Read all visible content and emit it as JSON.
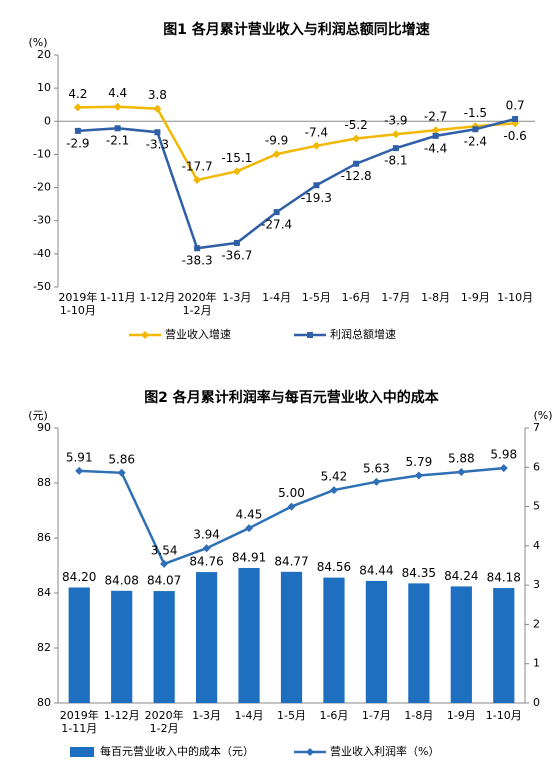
{
  "chart_data": [
    {
      "type": "line",
      "title": "图1 各月累计营业收入与利润总额同比增速",
      "y_unit": "(%)",
      "categories": [
        [
          "2019年",
          "1-10月"
        ],
        [
          "1-11月"
        ],
        [
          "1-12月"
        ],
        [
          "2020年",
          "1-2月"
        ],
        [
          "1-3月"
        ],
        [
          "1-4月"
        ],
        [
          "1-5月"
        ],
        [
          "1-6月"
        ],
        [
          "1-7月"
        ],
        [
          "1-8月"
        ],
        [
          "1-9月"
        ],
        [
          "1-10月"
        ]
      ],
      "series": [
        {
          "name": "营业收入增速",
          "type": "line",
          "marker": "diamond",
          "color": "#f2b800",
          "values": [
            4.2,
            4.4,
            3.8,
            -17.7,
            -15.1,
            -9.9,
            -7.4,
            -5.2,
            -3.9,
            -2.7,
            -1.5,
            -0.6
          ]
        },
        {
          "name": "利润总额增速",
          "type": "line",
          "marker": "square",
          "color": "#2f5fa7",
          "values": [
            -2.9,
            -2.1,
            -3.3,
            -38.3,
            -36.7,
            -27.4,
            -19.3,
            -12.8,
            -8.1,
            -4.4,
            -2.4,
            0.7
          ]
        }
      ],
      "ylim": [
        -50,
        20
      ],
      "yticks": [
        -50,
        -40,
        -30,
        -20,
        -10,
        0,
        10,
        20
      ]
    },
    {
      "type": "bar",
      "title": "图2 各月累计利润率与每百元营业收入中的成本",
      "y_unit": "(元)",
      "y2_unit": "(%)",
      "categories": [
        [
          "2019年",
          "1-11月"
        ],
        [
          "1-12月"
        ],
        [
          "2020年",
          "1-2月"
        ],
        [
          "1-3月"
        ],
        [
          "1-4月"
        ],
        [
          "1-5月"
        ],
        [
          "1-6月"
        ],
        [
          "1-7月"
        ],
        [
          "1-8月"
        ],
        [
          "1-9月"
        ],
        [
          "1-10月"
        ]
      ],
      "series": [
        {
          "name": "每百元营业收入中的成本（元）",
          "type": "bar",
          "color": "#1e6fbf",
          "values": [
            84.2,
            84.08,
            84.07,
            84.76,
            84.91,
            84.77,
            84.56,
            84.44,
            84.35,
            84.24,
            84.18
          ],
          "value_labels": [
            "84.20",
            "84.08",
            "84.07",
            "84.76",
            "84.91",
            "84.77",
            "84.56",
            "84.44",
            "84.35",
            "84.24",
            "84.18"
          ]
        },
        {
          "name": "营业收入利润率（%）",
          "type": "line",
          "marker": "diamond",
          "axis": "y2",
          "color": "#2e6fb5",
          "values": [
            5.91,
            5.86,
            3.54,
            3.94,
            4.45,
            5.0,
            5.42,
            5.63,
            5.79,
            5.88,
            5.98
          ],
          "value_labels": [
            "5.91",
            "5.86",
            "3.54",
            "3.94",
            "4.45",
            "5.00",
            "5.42",
            "5.63",
            "5.79",
            "5.88",
            "5.98"
          ]
        }
      ],
      "ylim": [
        80,
        90
      ],
      "yticks": [
        80,
        82,
        84,
        86,
        88,
        90
      ],
      "y2lim": [
        0,
        7
      ],
      "y2ticks": [
        0,
        1,
        2,
        3,
        4,
        5,
        6,
        7
      ]
    }
  ]
}
